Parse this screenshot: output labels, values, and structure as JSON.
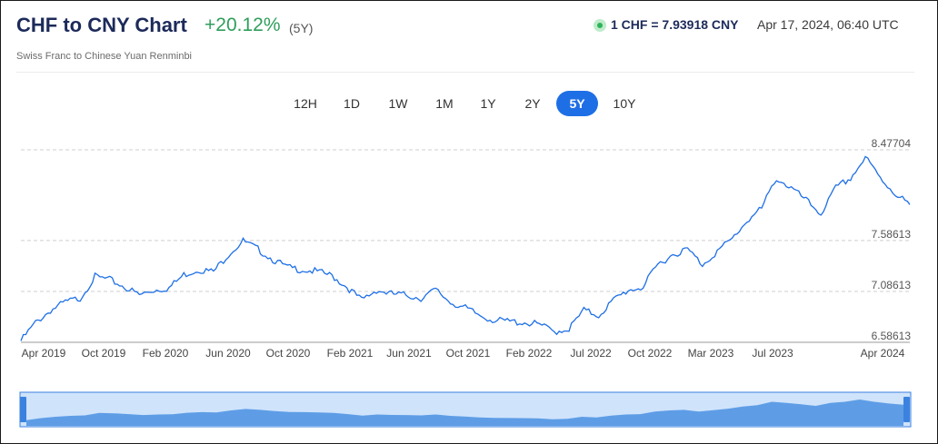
{
  "header": {
    "title": "CHF to CNY Chart",
    "change": "+20.12%",
    "period": "(5Y)",
    "subtitle": "Swiss Franc to Chinese Yuan Renminbi",
    "rate": "1 CHF = 7.93918 CNY",
    "timestamp": "Apr 17, 2024, 06:40 UTC"
  },
  "tabs": [
    {
      "label": "12H",
      "active": false
    },
    {
      "label": "1D",
      "active": false
    },
    {
      "label": "1W",
      "active": false
    },
    {
      "label": "1M",
      "active": false
    },
    {
      "label": "1Y",
      "active": false
    },
    {
      "label": "2Y",
      "active": false
    },
    {
      "label": "5Y",
      "active": true
    },
    {
      "label": "10Y",
      "active": false
    }
  ],
  "colors": {
    "line": "#1e6fe6",
    "brush_fill": "#4a90e2",
    "brush_bg": "#cfe3fb",
    "up": "#2e9e5b"
  },
  "chart_data": {
    "type": "line",
    "title": "CHF to CNY Chart",
    "ylim": [
      6.58613,
      8.47704
    ],
    "y_ticks": [
      "8.47704",
      "7.58613",
      "7.08613",
      "6.58613"
    ],
    "x_ticks": [
      "Apr 2019",
      "Oct 2019",
      "Feb 2020",
      "Jun 2020",
      "Oct 2020",
      "Feb 2021",
      "Jun 2021",
      "Oct 2021",
      "Feb 2022",
      "Jul 2022",
      "Oct 2022",
      "Mar 2023",
      "Jul 2023",
      "Apr 2024"
    ],
    "grid": true,
    "series": [
      {
        "x": [
          "2019-04",
          "2019-05",
          "2019-06",
          "2019-07",
          "2019-08",
          "2019-09",
          "2019-10",
          "2019-11",
          "2019-12",
          "2020-01",
          "2020-02",
          "2020-03",
          "2020-04",
          "2020-05",
          "2020-06",
          "2020-07",
          "2020-08",
          "2020-09",
          "2020-10",
          "2020-11",
          "2020-12",
          "2021-01",
          "2021-02",
          "2021-03",
          "2021-04",
          "2021-05",
          "2021-06",
          "2021-07",
          "2021-08",
          "2021-09",
          "2021-10",
          "2021-11",
          "2021-12",
          "2022-01",
          "2022-02",
          "2022-03",
          "2022-04",
          "2022-05",
          "2022-06",
          "2022-07",
          "2022-08",
          "2022-09",
          "2022-10",
          "2022-11",
          "2022-12",
          "2023-01",
          "2023-02",
          "2023-03",
          "2023-04",
          "2023-05",
          "2023-06",
          "2023-07",
          "2023-08",
          "2023-09",
          "2023-10",
          "2023-11",
          "2023-12",
          "2024-01",
          "2024-02",
          "2024-03",
          "2024-04"
        ],
        "y": [
          6.6,
          6.78,
          6.9,
          6.98,
          7.02,
          7.23,
          7.2,
          7.13,
          7.05,
          7.1,
          7.12,
          7.25,
          7.3,
          7.28,
          7.45,
          7.58,
          7.5,
          7.4,
          7.32,
          7.3,
          7.28,
          7.24,
          7.13,
          7.0,
          7.1,
          7.06,
          7.05,
          7.02,
          7.1,
          6.98,
          6.92,
          6.85,
          6.8,
          6.79,
          6.78,
          6.76,
          6.69,
          6.72,
          6.9,
          6.85,
          7.0,
          7.1,
          7.13,
          7.35,
          7.45,
          7.5,
          7.35,
          7.48,
          7.6,
          7.78,
          7.9,
          8.2,
          8.1,
          7.98,
          7.85,
          8.1,
          8.2,
          8.4,
          8.2,
          8.05,
          7.93918
        ]
      }
    ]
  }
}
